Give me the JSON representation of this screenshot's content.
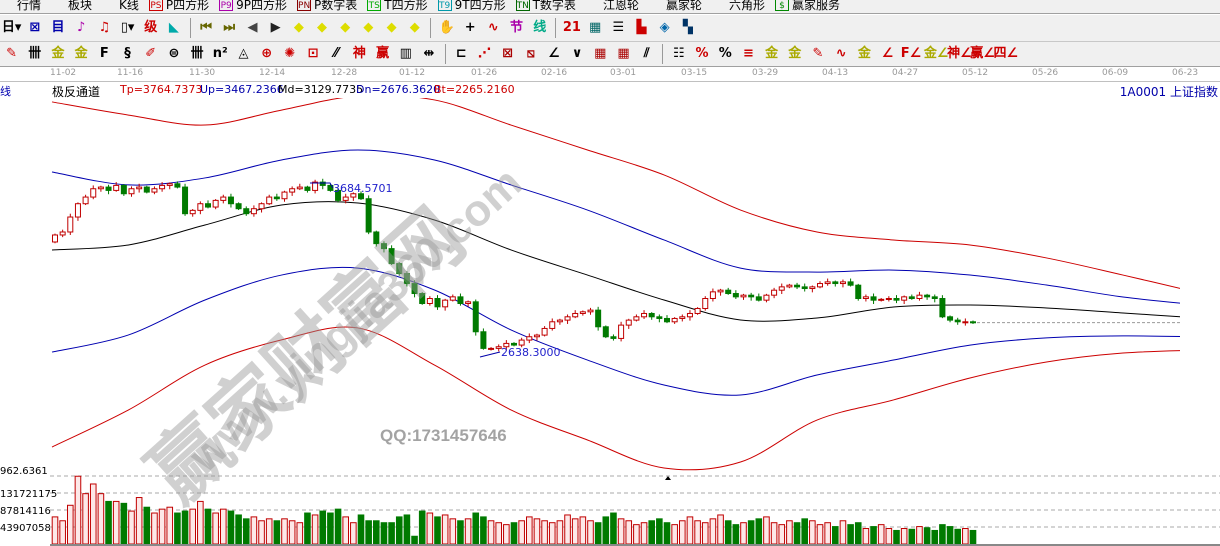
{
  "menu": [
    {
      "label": "行情",
      "icon": "quotes-icon",
      "c": "#333"
    },
    {
      "label": "板块",
      "icon": "sector-icon",
      "c": "#080"
    },
    {
      "label": "K线",
      "icon": "kline-icon",
      "c": "#c00"
    },
    {
      "label": "P四方形",
      "icon": "ps-icon",
      "badge": "PS",
      "c": "#c00"
    },
    {
      "label": "9P四方形",
      "icon": "p9-icon",
      "badge": "P9",
      "c": "#a0a"
    },
    {
      "label": "P数字表",
      "icon": "pn-icon",
      "badge": "PN",
      "c": "#800"
    },
    {
      "label": "T四方形",
      "icon": "ts-icon",
      "badge": "TS",
      "c": "#0a0"
    },
    {
      "label": "9T四方形",
      "icon": "t9-icon",
      "badge": "T9",
      "c": "#09a"
    },
    {
      "label": "T数字表",
      "icon": "tn-icon",
      "badge": "TN",
      "c": "#060"
    },
    {
      "label": "江恩轮",
      "icon": "gann-wheel-icon",
      "c": "#800"
    },
    {
      "label": "赢家轮",
      "icon": "winner-wheel-icon",
      "c": "#070"
    },
    {
      "label": "六角形",
      "icon": "hexagon-icon",
      "c": "#a0a"
    },
    {
      "label": "赢家服务",
      "icon": "dollar-icon",
      "badge": "$",
      "c": "#080"
    }
  ],
  "toolbar2": [
    {
      "g": "日▾",
      "n": "period-dropdown",
      "c": "#000"
    },
    {
      "g": "⊠",
      "n": "grid-icon",
      "c": "#00a"
    },
    {
      "g": "目",
      "n": "list-icon",
      "c": "#00a"
    },
    {
      "g": "♪",
      "n": "chart3-icon",
      "c": "#a0a"
    },
    {
      "g": "♫",
      "n": "chart9-icon",
      "c": "#c00"
    },
    {
      "g": "▯▾",
      "n": "candle-type-icon",
      "c": "#000"
    },
    {
      "g": "级",
      "n": "level-icon",
      "c": "#c00"
    },
    {
      "g": "◣",
      "n": "flag-icon",
      "c": "#0aa"
    },
    {
      "sep": 1
    },
    {
      "g": "⏮",
      "n": "first-icon",
      "c": "#660"
    },
    {
      "g": "⏭",
      "n": "last-icon",
      "c": "#660"
    },
    {
      "g": "◀",
      "n": "prev-icon",
      "c": "#444"
    },
    {
      "g": "▶",
      "n": "next-icon",
      "c": "#222"
    },
    {
      "g": "◆",
      "n": "diamond-left-icon",
      "c": "#dd0"
    },
    {
      "g": "◆",
      "n": "diamond-right-icon",
      "c": "#dd0"
    },
    {
      "g": "◆",
      "n": "diamond-expand-icon",
      "c": "#dd0"
    },
    {
      "g": "◆",
      "n": "diamond-shrink-icon",
      "c": "#dd0"
    },
    {
      "g": "◆",
      "n": "diamond-zoom-icon",
      "c": "#dd0"
    },
    {
      "g": "◆",
      "n": "diamond-move-icon",
      "c": "#dd0"
    },
    {
      "sep": 1
    },
    {
      "g": "✋",
      "n": "hand-icon",
      "c": "#000"
    },
    {
      "g": "+",
      "n": "crosshair-icon",
      "c": "#000"
    },
    {
      "g": "∿",
      "n": "line-icon",
      "c": "#c00"
    },
    {
      "g": "节",
      "n": "node-icon",
      "c": "#a0a"
    },
    {
      "g": "线",
      "n": "trend-icon",
      "c": "#0a8"
    },
    {
      "sep": 1
    },
    {
      "g": "21",
      "n": "calendar-icon",
      "c": "#c00"
    },
    {
      "g": "▦",
      "n": "calculator-icon",
      "c": "#066"
    },
    {
      "g": "☰",
      "n": "report-icon",
      "c": "#000"
    },
    {
      "g": "▙",
      "n": "save-icon",
      "c": "#c00"
    },
    {
      "g": "◈",
      "n": "network-icon",
      "c": "#06a"
    },
    {
      "g": "▚",
      "n": "print-icon",
      "c": "#036"
    }
  ],
  "toolbar3": [
    {
      "g": "✎",
      "n": "pen-icon",
      "c": "#c00"
    },
    {
      "g": "卌",
      "n": "bars-icon",
      "c": "#000"
    },
    {
      "g": "金",
      "n": "gold1-icon",
      "c": "#aa0"
    },
    {
      "g": "金",
      "n": "gold2-icon",
      "c": "#aa0"
    },
    {
      "g": "F",
      "n": "fib-icon",
      "c": "#000"
    },
    {
      "g": "§",
      "n": "spiral-icon",
      "c": "#000"
    },
    {
      "g": "✐",
      "n": "draw-icon",
      "c": "#c00"
    },
    {
      "g": "⊜",
      "n": "circle-icon",
      "c": "#000"
    },
    {
      "g": "卌",
      "n": "cycle-icon",
      "c": "#000"
    },
    {
      "g": "n²",
      "n": "square-icon",
      "c": "#000"
    },
    {
      "g": "◬",
      "n": "triangle-icon",
      "c": "#000"
    },
    {
      "g": "⊕",
      "n": "target-icon",
      "c": "#c00"
    },
    {
      "g": "✺",
      "n": "star-icon",
      "c": "#c00"
    },
    {
      "g": "⊡",
      "n": "box-icon",
      "c": "#c00"
    },
    {
      "g": "⁄⁄",
      "n": "parallel-icon",
      "c": "#000"
    },
    {
      "g": "神",
      "n": "god-icon",
      "c": "#c00"
    },
    {
      "g": "赢",
      "n": "win-icon",
      "c": "#c00"
    },
    {
      "g": "▥",
      "n": "scale-icon",
      "c": "#000"
    },
    {
      "g": "⇹",
      "n": "span-icon",
      "c": "#000"
    },
    {
      "sep": 1
    },
    {
      "g": "⊏",
      "n": "rect-icon",
      "c": "#000"
    },
    {
      "g": "⋰",
      "n": "fan-icon",
      "c": "#c00"
    },
    {
      "g": "⊠",
      "n": "gann-box-icon",
      "c": "#a00"
    },
    {
      "g": "⧅",
      "n": "gann-grid-icon",
      "c": "#a00"
    },
    {
      "g": "∠",
      "n": "angle-icon",
      "c": "#000"
    },
    {
      "g": "∨",
      "n": "wave-icon",
      "c": "#000"
    },
    {
      "g": "▦",
      "n": "matrix-icon",
      "c": "#a00"
    },
    {
      "g": "▦",
      "n": "matrix2-icon",
      "c": "#a00"
    },
    {
      "g": "⫽",
      "n": "channel-icon",
      "c": "#000"
    },
    {
      "sep": 1
    },
    {
      "g": "☷",
      "n": "table-icon",
      "c": "#000"
    },
    {
      "g": "%",
      "n": "pct-fan-icon",
      "c": "#c00"
    },
    {
      "g": "%",
      "n": "percent-icon",
      "c": "#000"
    },
    {
      "g": "≡",
      "n": "pct-lines-icon",
      "c": "#c00"
    },
    {
      "g": "金",
      "n": "gold-circle-icon",
      "c": "#aa0"
    },
    {
      "g": "金",
      "n": "gold-lines-icon",
      "c": "#aa0"
    },
    {
      "g": "✎",
      "n": "marker-icon",
      "c": "#c00"
    },
    {
      "g": "∿",
      "n": "sine-icon",
      "c": "#c00"
    },
    {
      "g": "金",
      "n": "gold-box-icon",
      "c": "#aa0"
    },
    {
      "g": "∠",
      "n": "angle-j-icon",
      "c": "#c00"
    },
    {
      "g": "F∠",
      "n": "angle-f-icon",
      "c": "#c00"
    },
    {
      "g": "金∠",
      "n": "angle-gold-icon",
      "c": "#aa0"
    },
    {
      "g": "神∠",
      "n": "angle-god-icon",
      "c": "#c00"
    },
    {
      "g": "赢∠",
      "n": "angle-win-icon",
      "c": "#c00"
    },
    {
      "g": "四∠",
      "n": "angle-four-icon",
      "c": "#c00"
    }
  ],
  "left_label": "线",
  "dates": [
    "11-02",
    "11-16",
    "11-30",
    "12-14",
    "12-28",
    "01-12",
    "01-26",
    "02-16",
    "03-01",
    "03-15",
    "03-29",
    "04-13",
    "04-27",
    "05-12",
    "05-26",
    "06-09",
    "06-23"
  ],
  "indicator": {
    "name": "极反通道",
    "tp": "Tp=3764.7373",
    "up": "Up=3467.2366",
    "md": "Md=3129.7735",
    "dn": "Dn=2676.3620",
    "bt": "Bt=2265.2160"
  },
  "symbol": "1A0001  上证指数",
  "colors": {
    "up": "#c00000",
    "down": "#007a00",
    "tp": "#cc0000",
    "up_band": "#0000b0",
    "md": "#000000",
    "dn": "#0000b0",
    "bt": "#cc0000"
  },
  "watermark": {
    "cn": "赢家财富网",
    "url": "www.yingjia360.com",
    "qq": "QQ:1731457646"
  },
  "chart_data": {
    "type": "candlestick",
    "high_label": "3684.5701",
    "low_label": "2638.3000",
    "closes": [
      3372,
      3390,
      3480,
      3560,
      3600,
      3650,
      3660,
      3640,
      3670,
      3620,
      3650,
      3660,
      3630,
      3650,
      3670,
      3680,
      3660,
      3500,
      3520,
      3560,
      3540,
      3580,
      3600,
      3560,
      3530,
      3500,
      3530,
      3560,
      3600,
      3590,
      3630,
      3650,
      3660,
      3640,
      3690,
      3670,
      3640,
      3580,
      3600,
      3620,
      3590,
      3390,
      3320,
      3290,
      3200,
      3140,
      3080,
      3020,
      2960,
      2990,
      2940,
      2980,
      3000,
      2960,
      2970,
      2790,
      2690,
      2690,
      2700,
      2720,
      2710,
      2740,
      2760,
      2770,
      2810,
      2850,
      2860,
      2880,
      2900,
      2910,
      2920,
      2820,
      2760,
      2750,
      2830,
      2860,
      2880,
      2900,
      2880,
      2870,
      2850,
      2870,
      2880,
      2900,
      2930,
      2990,
      3030,
      3040,
      3020,
      3000,
      3010,
      3000,
      2980,
      3010,
      3040,
      3060,
      3070,
      3060,
      3050,
      3060,
      3080,
      3090,
      3080,
      3090,
      3070,
      2990,
      3000,
      2980,
      2985,
      2990,
      2980,
      3000,
      2990,
      3010,
      3000,
      2990,
      2880,
      2860,
      2850,
      2850,
      2845
    ],
    "first_open": 3330,
    "bands": {
      "Tp": [
        4172,
        4093,
        4033,
        4123,
        4208,
        4184,
        4033,
        3883,
        3733,
        3522,
        3390,
        3342,
        3312,
        3234,
        3131,
        3023
      ],
      "Up": [
        3751,
        3673,
        3715,
        3823,
        3883,
        3823,
        3673,
        3522,
        3342,
        3173,
        3149,
        3161,
        3131,
        3071,
        2999,
        2951
      ],
      "Md": [
        3282,
        3312,
        3432,
        3552,
        3564,
        3462,
        3282,
        3131,
        2981,
        2861,
        2873,
        2939,
        2951,
        2933,
        2903,
        2873
      ],
      "Dn": [
        2668,
        2771,
        2981,
        3131,
        3173,
        3041,
        2801,
        2620,
        2470,
        2410,
        2530,
        2620,
        2710,
        2753,
        2765,
        2759
      ],
      "Bt": [
        2097,
        2320,
        2590,
        2741,
        2813,
        2590,
        2320,
        2139,
        1971,
        2007,
        2259,
        2380,
        2512,
        2608,
        2662,
        2680
      ]
    },
    "volume_ticks": [
      "962.6361",
      "131721175",
      "87814116",
      "43907058"
    ],
    "volumes_millions": [
      70,
      60,
      100,
      175,
      130,
      155,
      130,
      110,
      110,
      105,
      85,
      120,
      95,
      80,
      90,
      95,
      80,
      85,
      90,
      110,
      90,
      80,
      90,
      85,
      75,
      65,
      70,
      60,
      65,
      60,
      65,
      60,
      55,
      80,
      75,
      85,
      80,
      90,
      70,
      55,
      75,
      60,
      60,
      55,
      55,
      70,
      75,
      20,
      85,
      80,
      70,
      75,
      65,
      60,
      65,
      80,
      70,
      60,
      55,
      50,
      55,
      60,
      70,
      65,
      60,
      55,
      60,
      75,
      65,
      70,
      60,
      55,
      70,
      80,
      65,
      60,
      50,
      55,
      60,
      65,
      55,
      50,
      60,
      70,
      60,
      55,
      65,
      75,
      60,
      50,
      55,
      60,
      65,
      70,
      55,
      50,
      60,
      55,
      65,
      60,
      50,
      55,
      45,
      60,
      50,
      55,
      40,
      45,
      50,
      40,
      35,
      40,
      38,
      45,
      42,
      35,
      50,
      45,
      38,
      40,
      35
    ]
  }
}
